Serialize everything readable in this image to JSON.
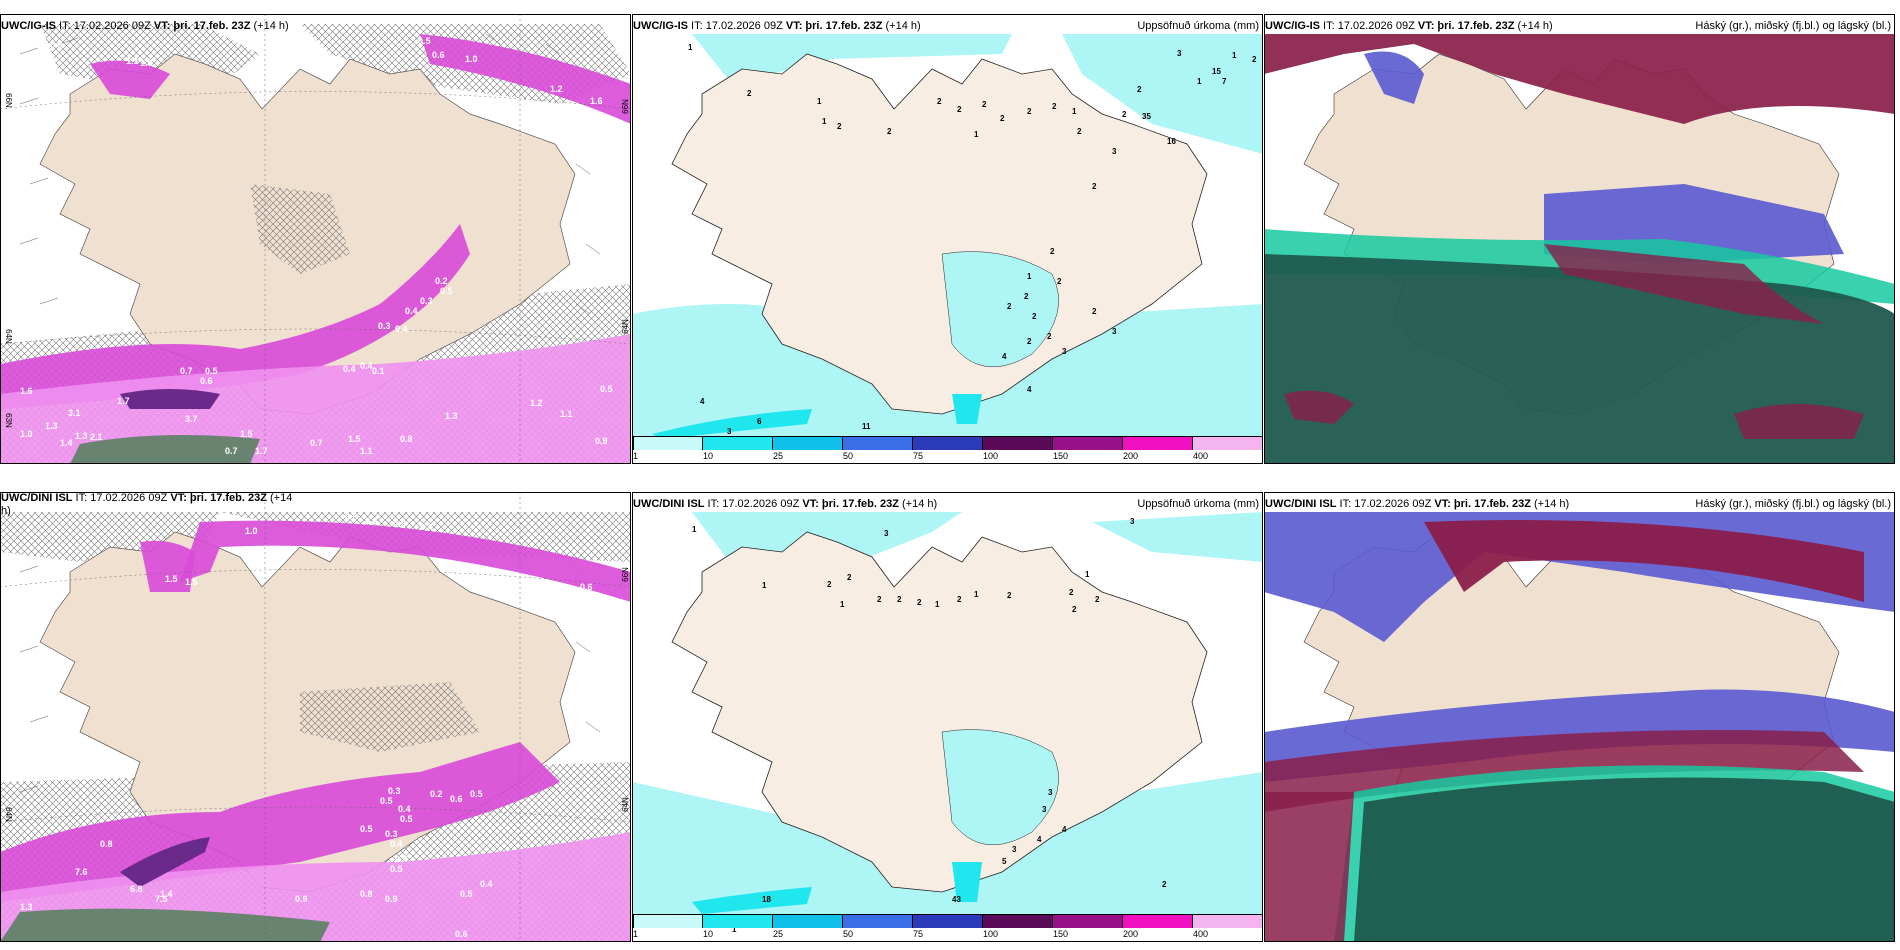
{
  "colors": {
    "land": "#efe0cf",
    "precip_cyan": "#aef5f5",
    "precip_cyan_mid": "#5fe6ee",
    "magenta": "#d84ad8",
    "magenta_light": "#f090f0",
    "purple_dark": "#6a2a8a",
    "cloud_high": "#8a1e4a",
    "cloud_mid": "#5a5ad0",
    "cloud_low": "#1f5a4e",
    "cloud_low_edge": "#16c9a0"
  },
  "panels": [
    {
      "id": "p1",
      "model": "UWC/IG-IS",
      "it": " IT: 17.02.2026 09Z ",
      "vt_label": "VT: þri. 17.feb. 23Z",
      "lead": " (+14 h)",
      "right_title": "",
      "lat_labels": [
        "66N",
        "65N",
        "64N",
        "63N"
      ],
      "values": [
        "0.9",
        "1.1",
        "1.6",
        "0.5",
        "1.0",
        "0.6",
        "1.2",
        "1.6",
        "0.2",
        "0.3",
        "0.4",
        "0.5",
        "0.4",
        "0.3",
        "0.1",
        "0.4",
        "0.4",
        "0.5",
        "0.7",
        "0.6",
        "3.1",
        "1.7",
        "1.3",
        "1.0",
        "2.1",
        "1.4",
        "1.3",
        "3.7",
        "1.5",
        "1.2",
        "1.1",
        "1.3",
        "1.5",
        "0.7",
        "0.8",
        "1.1",
        "0.9",
        "0.7",
        "1.7",
        "0.5",
        "1.6"
      ]
    },
    {
      "id": "p2",
      "model": "UWC/IG-IS",
      "it": " IT: 17.02.2026 09Z ",
      "vt_label": "VT: þri. 17.feb. 23Z",
      "lead": " (+14 h)",
      "right_title": "Uppsöfnuð úrkoma (mm)",
      "values": [
        "1",
        "2",
        "1",
        "1",
        "2",
        "2",
        "2",
        "2",
        "2",
        "2",
        "1",
        "2",
        "2",
        "1",
        "2",
        "2",
        "3",
        "2",
        "2",
        "2",
        "1",
        "2",
        "2",
        "2",
        "2",
        "2",
        "3",
        "2",
        "3",
        "4",
        "4",
        "4",
        "3",
        "6",
        "11",
        "3",
        "7",
        "15",
        "16",
        "35",
        "1",
        "2",
        "1",
        "2"
      ]
    },
    {
      "id": "p3",
      "model": "UWC/IG-IS",
      "it": " IT: 17.02.2026 09Z ",
      "vt_label": "VT: þri. 17.feb. 23Z",
      "lead": " (+14 h)",
      "right_title": "Háský (gr.), miðský (fj.bl.) og lágský (bl.)"
    },
    {
      "id": "p4",
      "model": "UWC/DINI ISL",
      "it": " IT: 17.02.2026 09Z ",
      "vt_label": "VT: þri. 17.feb. 23Z",
      "lead": " (+14",
      "lead2": "h)",
      "right_title": "",
      "lat_labels": [
        "66N",
        "65N",
        "64N",
        "63N"
      ],
      "values": [
        "0.5",
        "0.6",
        "0.5",
        "0.4",
        "0.6",
        "1.5",
        "1.5",
        "1.0",
        "0.3",
        "0.5",
        "0.4",
        "0.5",
        "0.5",
        "0.3",
        "0.4",
        "0.4",
        "0.5",
        "0.2",
        "0.6",
        "0.5",
        "0.8",
        "7.6",
        "6.8",
        "7.5",
        "1.4",
        "0.9",
        "0.8",
        "0.9",
        "0.5",
        "0.4",
        "1.3",
        "0.6"
      ]
    },
    {
      "id": "p5",
      "model": "UWC/DINI ISL",
      "it": " IT: 17.02.2026 09Z ",
      "vt_label": "VT: þri. 17.feb. 23Z",
      "lead": " (+14 h)",
      "right_title": "Uppsöfnuð úrkoma (mm)",
      "values": [
        "1",
        "3",
        "2",
        "2",
        "1",
        "1",
        "2",
        "2",
        "2",
        "1",
        "2",
        "1",
        "2",
        "1",
        "2",
        "2",
        "2",
        "3",
        "3",
        "3",
        "4",
        "4",
        "3",
        "5",
        "2",
        "18",
        "43",
        "1"
      ]
    },
    {
      "id": "p6",
      "model": "UWC/DINI ISL",
      "it": " IT: 17.02.2026 09Z ",
      "vt_label": "VT: þri. 17.feb. 23Z",
      "lead": " (+14 h)",
      "right_title": "Háský (gr.), miðský (fj.bl.) og lágský (bl.)"
    }
  ],
  "legend": {
    "ticks": [
      "1",
      "10",
      "25",
      "50",
      "75",
      "100",
      "150",
      "200",
      "400"
    ],
    "colors": [
      "#c8fafa",
      "#20e6ee",
      "#10c0e8",
      "#3a6ee6",
      "#2a3ab8",
      "#5a0a58",
      "#9a108a",
      "#f010c0",
      "#f4b4f0"
    ]
  }
}
